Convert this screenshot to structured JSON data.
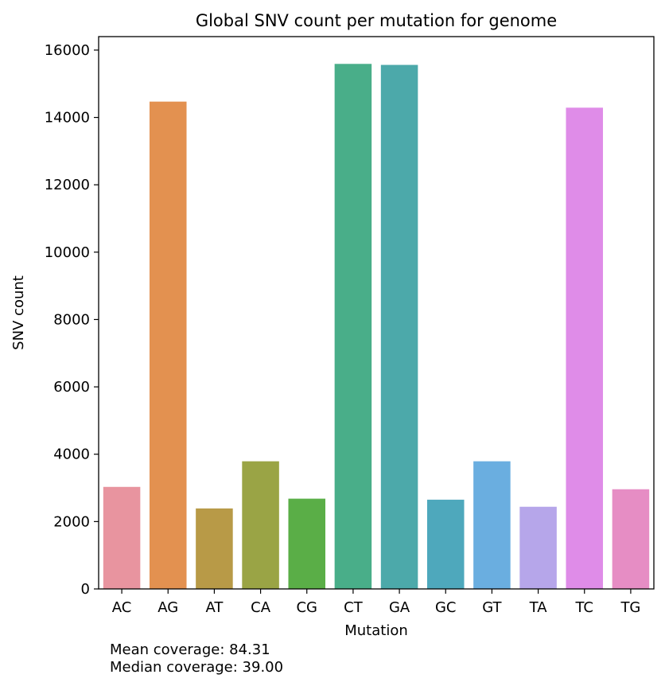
{
  "chart_data": {
    "type": "bar",
    "title": "Global SNV count per mutation for genome",
    "xlabel": "Mutation",
    "ylabel": "SNV count",
    "ylim": [
      0,
      16400
    ],
    "yticks": [
      0,
      2000,
      4000,
      6000,
      8000,
      10000,
      12000,
      14000,
      16000
    ],
    "categories": [
      "AC",
      "AG",
      "AT",
      "CA",
      "CG",
      "CT",
      "GA",
      "GC",
      "GT",
      "TA",
      "TC",
      "TG"
    ],
    "values": [
      3030,
      14470,
      2390,
      3790,
      2680,
      15590,
      15560,
      2650,
      3790,
      2440,
      14290,
      2960
    ],
    "colors": [
      "#e8949f",
      "#e39150",
      "#b89a47",
      "#9aa445",
      "#5aae47",
      "#49ae89",
      "#4ca9aa",
      "#4ea8bc",
      "#6aaee0",
      "#b6a6ea",
      "#df8ce8",
      "#e68dc4"
    ],
    "grid": false,
    "legend": "none"
  },
  "notes": {
    "mean": "Mean coverage: 84.31",
    "median": "Median coverage: 39.00"
  }
}
